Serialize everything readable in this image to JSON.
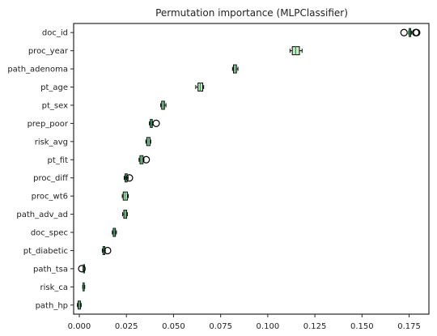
{
  "chart_data": {
    "type": "boxplot",
    "orientation": "horizontal",
    "title": "Permutation importance (MLPClassifier)",
    "xlabel": "",
    "ylabel": "",
    "xlim": [
      -0.003,
      0.1855
    ],
    "xticks": [
      0.0,
      0.025,
      0.05,
      0.075,
      0.1,
      0.125,
      0.15,
      0.175
    ],
    "xtick_labels": [
      "0.000",
      "0.025",
      "0.050",
      "0.075",
      "0.100",
      "0.125",
      "0.150",
      "0.175"
    ],
    "grid": false,
    "colors": {
      "box_fill": "#ccebc5",
      "median": "#1a9850",
      "box_edge": "#000000",
      "axes_edge": "#262626"
    },
    "categories": [
      "doc_id",
      "proc_year",
      "path_adenoma",
      "pt_age",
      "pt_sex",
      "prep_poor",
      "risk_avg",
      "pt_fit",
      "proc_diff",
      "proc_wt6",
      "path_adv_ad",
      "doc_spec",
      "pt_diabetic",
      "path_tsa",
      "risk_ca",
      "path_hp"
    ],
    "boxes": [
      {
        "name": "doc_id",
        "whislo": 0.1748,
        "q1": 0.175,
        "med": 0.1753,
        "q3": 0.1758,
        "whishi": 0.1762,
        "fliers": [
          0.1723,
          0.1785,
          0.179
        ]
      },
      {
        "name": "proc_year",
        "whislo": 0.1118,
        "q1": 0.113,
        "med": 0.1148,
        "q3": 0.1168,
        "whishi": 0.1182,
        "fliers": []
      },
      {
        "name": "path_adenoma",
        "whislo": 0.0813,
        "q1": 0.0818,
        "med": 0.0826,
        "q3": 0.0834,
        "whishi": 0.0842,
        "fliers": []
      },
      {
        "name": "pt_age",
        "whislo": 0.0618,
        "q1": 0.063,
        "med": 0.0642,
        "q3": 0.0655,
        "whishi": 0.066,
        "fliers": []
      },
      {
        "name": "pt_sex",
        "whislo": 0.0432,
        "q1": 0.0437,
        "med": 0.0445,
        "q3": 0.0452,
        "whishi": 0.046,
        "fliers": []
      },
      {
        "name": "prep_poor",
        "whislo": 0.0372,
        "q1": 0.0377,
        "med": 0.0381,
        "q3": 0.0387,
        "whishi": 0.039,
        "fliers": [
          0.0408
        ]
      },
      {
        "name": "risk_avg",
        "whislo": 0.0353,
        "q1": 0.0358,
        "med": 0.0366,
        "q3": 0.0375,
        "whishi": 0.0379,
        "fliers": []
      },
      {
        "name": "pt_fit",
        "whislo": 0.0317,
        "q1": 0.0322,
        "med": 0.0329,
        "q3": 0.0338,
        "whishi": 0.0343,
        "fliers": [
          0.0355
        ]
      },
      {
        "name": "proc_diff",
        "whislo": 0.0238,
        "q1": 0.0243,
        "med": 0.0247,
        "q3": 0.0254,
        "whishi": 0.0259,
        "fliers": [
          0.0266
        ]
      },
      {
        "name": "proc_wt6",
        "whislo": 0.0228,
        "q1": 0.0233,
        "med": 0.0243,
        "q3": 0.0255,
        "whishi": 0.026,
        "fliers": []
      },
      {
        "name": "path_adv_ad",
        "whislo": 0.023,
        "q1": 0.0236,
        "med": 0.0243,
        "q3": 0.0251,
        "whishi": 0.0255,
        "fliers": []
      },
      {
        "name": "doc_spec",
        "whislo": 0.0175,
        "q1": 0.018,
        "med": 0.0186,
        "q3": 0.0192,
        "whishi": 0.0197,
        "fliers": []
      },
      {
        "name": "pt_diabetic",
        "whislo": 0.0122,
        "q1": 0.0126,
        "med": 0.013,
        "q3": 0.0135,
        "whishi": 0.0138,
        "fliers": [
          0.015
        ]
      },
      {
        "name": "path_tsa",
        "whislo": 0.002,
        "q1": 0.0022,
        "med": 0.0025,
        "q3": 0.0028,
        "whishi": 0.0031,
        "fliers": [
          0.0013
        ]
      },
      {
        "name": "risk_ca",
        "whislo": 0.0018,
        "q1": 0.002,
        "med": 0.0023,
        "q3": 0.0026,
        "whishi": 0.0029,
        "fliers": []
      },
      {
        "name": "path_hp",
        "whislo": -0.001,
        "q1": -0.0006,
        "med": 0.0,
        "q3": 0.0006,
        "whishi": 0.001,
        "fliers": []
      }
    ]
  }
}
